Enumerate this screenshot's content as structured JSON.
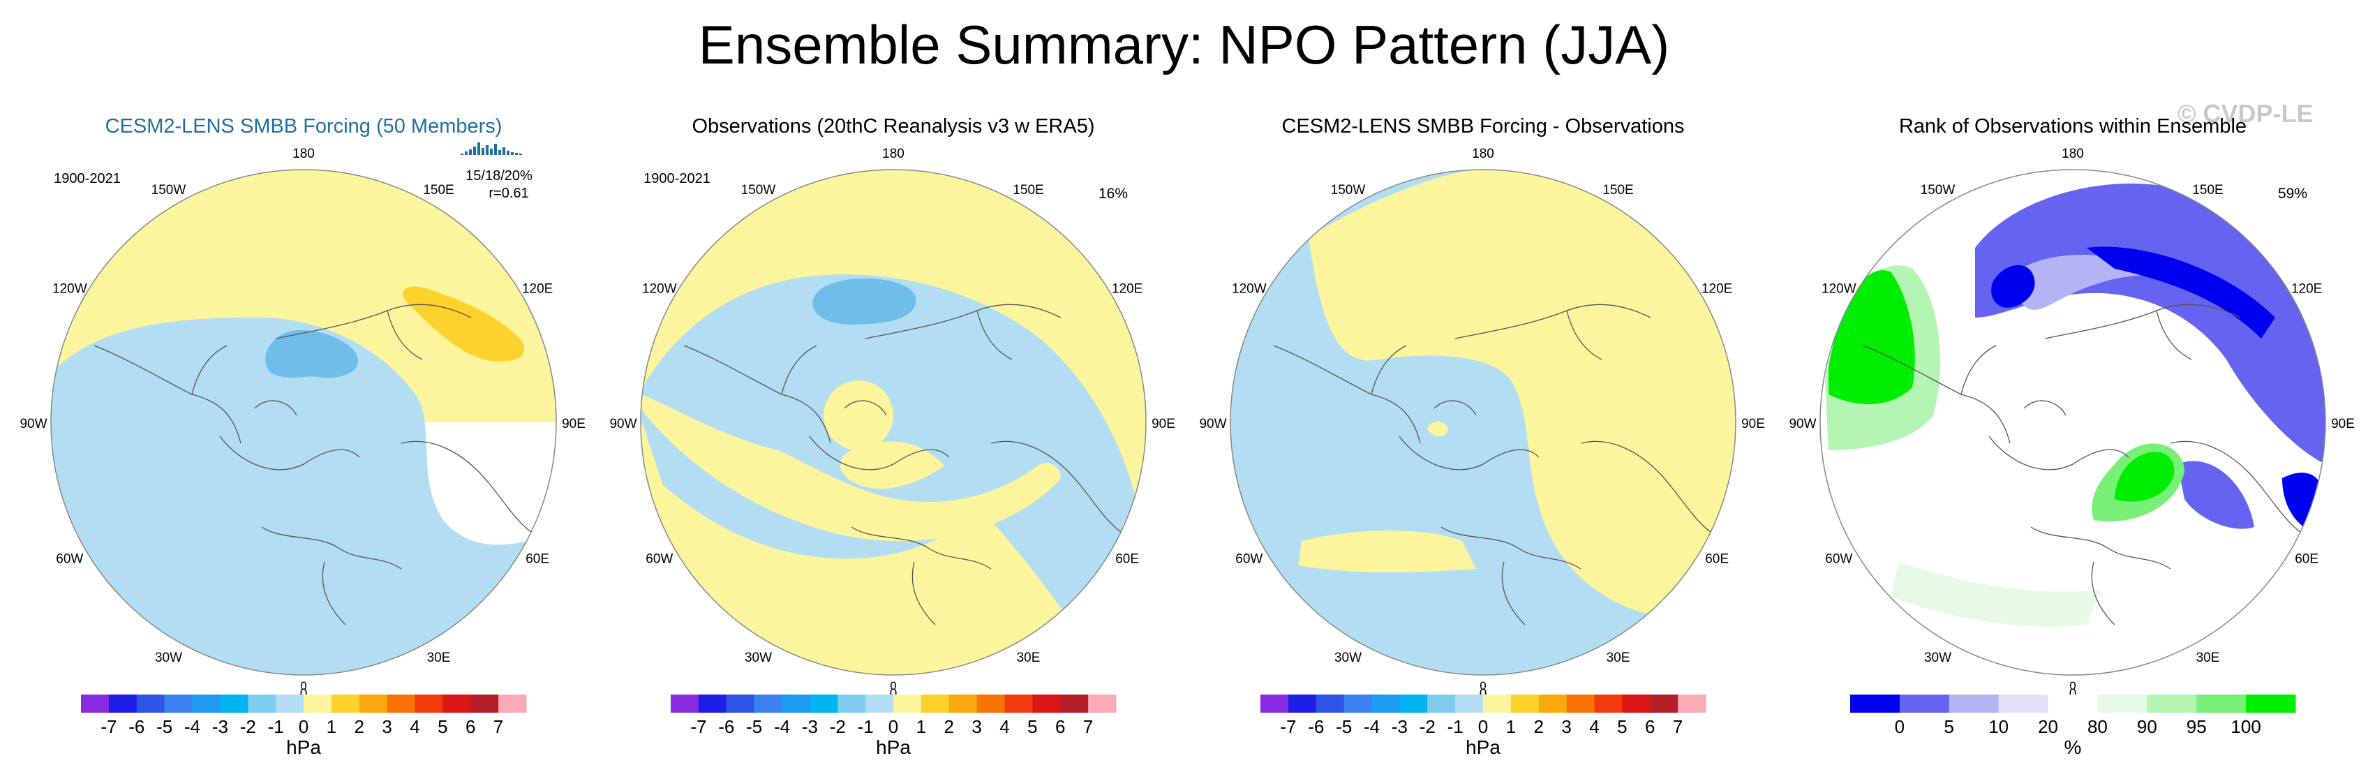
{
  "title": "Ensemble Summary: NPO Pattern (JJA)",
  "copyright": "© CVDP-LE",
  "colors": {
    "ocean_blue": "#b3ddf2",
    "pale_yellow": "#fdf59d",
    "mid_blue": "#6fbeea",
    "orange_yellow": "#fdd22c",
    "rank_white": "#ffffff",
    "coast": "#555555",
    "title_blue": "#1f6fa0"
  },
  "chart_data": [
    {
      "type": "map",
      "title": "CESM2-LENS SMBB Forcing (50 Members)",
      "period": "1900-2021",
      "stats": [
        "15/18/20%",
        "r=0.61"
      ],
      "lon_labels": [
        "180",
        "150E",
        "120E",
        "90E",
        "60E",
        "30E",
        "0",
        "30W",
        "60W",
        "90W",
        "120W",
        "150W"
      ],
      "colorbar": {
        "levels": [
          "-7",
          "-6",
          "-5",
          "-4",
          "-3",
          "-2",
          "-1",
          "0",
          "1",
          "2",
          "3",
          "4",
          "5",
          "6",
          "7"
        ],
        "colors": [
          "#8a2be2",
          "#1e1ee6",
          "#2f55e6",
          "#3b82f0",
          "#1e9bf0",
          "#00b4f0",
          "#7ecdf0",
          "#b4def5",
          "#fdf59d",
          "#fdd22c",
          "#fba90d",
          "#f97306",
          "#f23a0c",
          "#dc1414",
          "#b41e28",
          "#faaab4"
        ],
        "label": "hPa"
      }
    },
    {
      "type": "map",
      "title": "Observations (20thC Reanalysis v3 w ERA5)",
      "period": "1900-2021",
      "percent": "16%",
      "lon_labels": [
        "180",
        "150E",
        "120E",
        "90E",
        "60E",
        "30E",
        "0",
        "30W",
        "60W",
        "90W",
        "120W",
        "150W"
      ],
      "colorbar": {
        "levels": [
          "-7",
          "-6",
          "-5",
          "-4",
          "-3",
          "-2",
          "-1",
          "0",
          "1",
          "2",
          "3",
          "4",
          "5",
          "6",
          "7"
        ],
        "label": "hPa"
      }
    },
    {
      "type": "map",
      "title": "CESM2-LENS SMBB Forcing - Observations",
      "lon_labels": [
        "180",
        "150E",
        "120E",
        "90E",
        "60E",
        "30E",
        "0",
        "30W",
        "60W",
        "90W",
        "120W",
        "150W"
      ],
      "colorbar": {
        "levels": [
          "-7",
          "-6",
          "-5",
          "-4",
          "-3",
          "-2",
          "-1",
          "0",
          "1",
          "2",
          "3",
          "4",
          "5",
          "6",
          "7"
        ],
        "label": "hPa"
      }
    },
    {
      "type": "map",
      "title": "Rank of Observations within Ensemble",
      "percent": "59%",
      "lon_labels": [
        "180",
        "150E",
        "120E",
        "90E",
        "60E",
        "30E",
        "0",
        "30W",
        "60W",
        "90W",
        "120W",
        "150W"
      ],
      "colorbar": {
        "levels": [
          "0",
          "5",
          "10",
          "20",
          "80",
          "90",
          "95",
          "100"
        ],
        "colors": [
          "#0000f0",
          "#6464f0",
          "#b4b4f5",
          "#e1e1fa",
          "#ffffff",
          "#e6fae6",
          "#b4f5b4",
          "#78f078",
          "#00ee00"
        ],
        "label": "%"
      }
    }
  ]
}
